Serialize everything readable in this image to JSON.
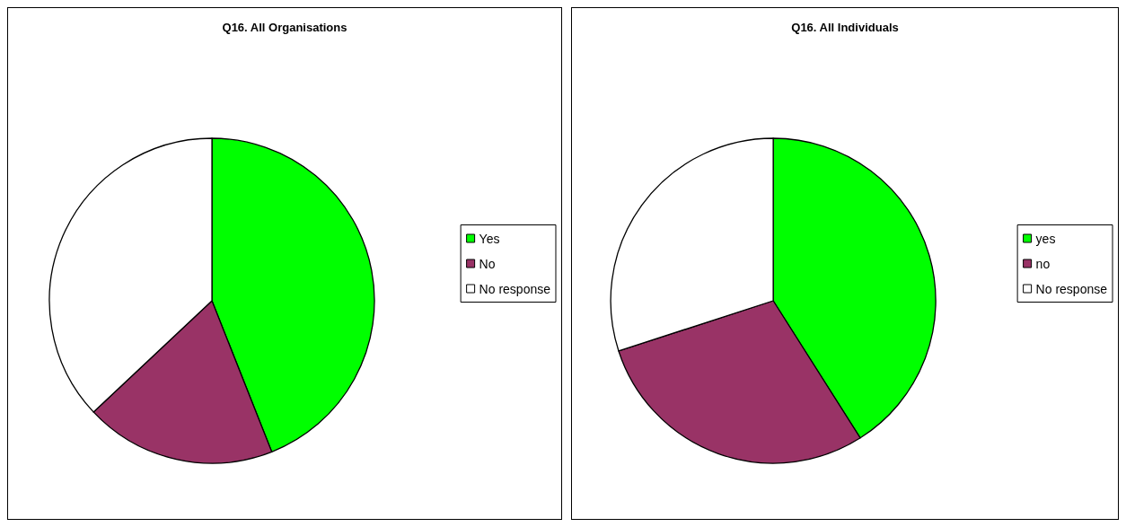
{
  "chart_data": [
    {
      "type": "pie",
      "title": "Q16. All Organisations",
      "categories": [
        "Yes",
        "No",
        "No response"
      ],
      "values": [
        44,
        19,
        37
      ],
      "colors": [
        "#00ff00",
        "#993366",
        "#ffffff"
      ],
      "legend": "right"
    },
    {
      "type": "pie",
      "title": "Q16. All Individuals",
      "categories": [
        "yes",
        "no",
        "No response"
      ],
      "values": [
        41,
        29,
        30
      ],
      "colors": [
        "#00ff00",
        "#993366",
        "#ffffff"
      ],
      "legend": "right"
    }
  ]
}
